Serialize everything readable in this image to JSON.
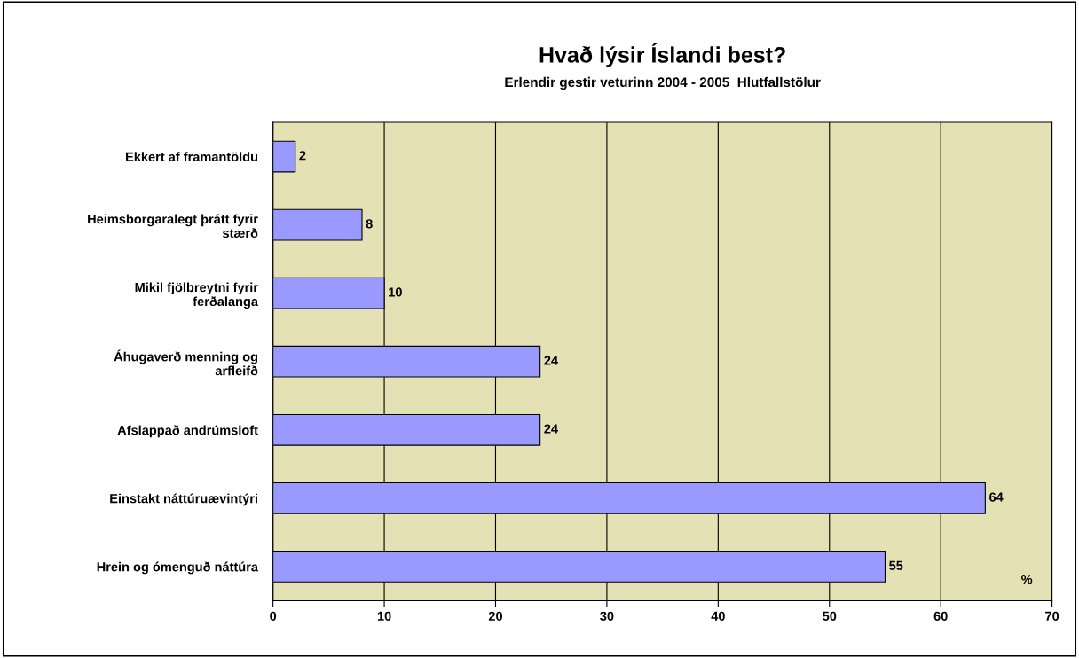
{
  "chart_data": {
    "type": "bar",
    "orientation": "horizontal",
    "title": "Hvað lýsir Íslandi best?",
    "subtitle": "Erlendir gestir veturinn 2004 - 2005  Hlutfallstölur",
    "categories": [
      "Ekkert af framantöldu",
      "Heimsborgaralegt þrátt fyrir\nstærð",
      "Mikil fjölbreytni fyrir\nferðalanga",
      "Áhugaverð menning og\narfleifð",
      "Afslappað andrúmsloft",
      "Einstakt náttúruævintýri",
      "Hrein og ómenguð náttúra"
    ],
    "values": [
      2,
      8,
      10,
      24,
      24,
      64,
      55
    ],
    "color": "#9999ff",
    "data_labels": true,
    "xlim": [
      0,
      70
    ],
    "xticks": [
      0,
      10,
      20,
      30,
      40,
      50,
      60,
      70
    ],
    "grid": "x",
    "legend": false,
    "annotations": [
      "%"
    ]
  }
}
